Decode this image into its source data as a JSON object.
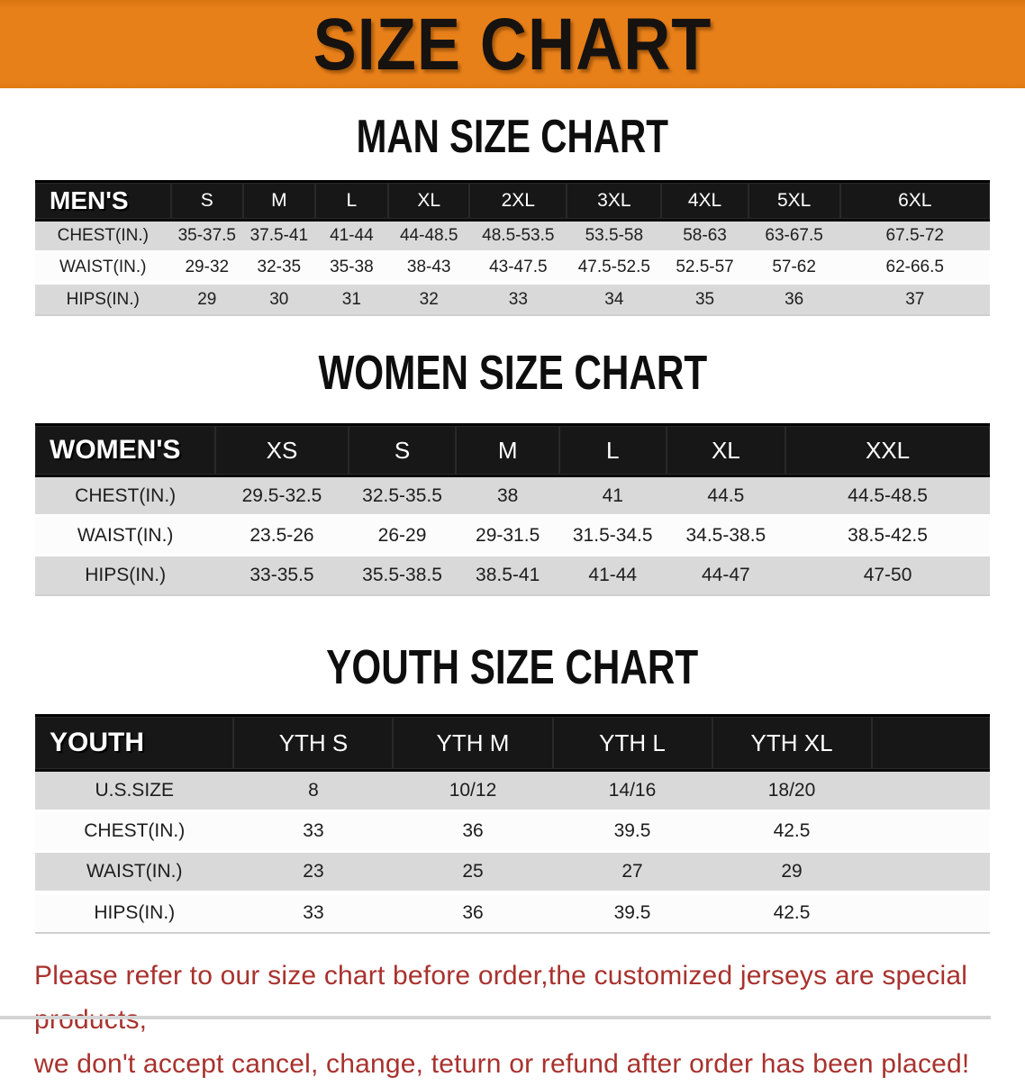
{
  "banner": {
    "title": "SIZE CHART"
  },
  "colors": {
    "banner_orange": "#E8801A",
    "header_black": "#171717",
    "row_gray": "#D9D9D9",
    "row_white": "#FCFCFC",
    "note_red": "#A8322E"
  },
  "sections": [
    {
      "heading": "MAN SIZE CHART",
      "group_label": "MEN'S",
      "columns": [
        "S",
        "M",
        "L",
        "XL",
        "2XL",
        "3XL",
        "4XL",
        "5XL",
        "6XL"
      ],
      "rows": [
        {
          "label": "CHEST(IN.)",
          "values": [
            "35-37.5",
            "37.5-41",
            "41-44",
            "44-48.5",
            "48.5-53.5",
            "53.5-58",
            "58-63",
            "63-67.5",
            "67.5-72"
          ]
        },
        {
          "label": "WAIST(IN.)",
          "values": [
            "29-32",
            "32-35",
            "35-38",
            "38-43",
            "43-47.5",
            "47.5-52.5",
            "52.5-57",
            "57-62",
            "62-66.5"
          ]
        },
        {
          "label": "HIPS(IN.)",
          "values": [
            "29",
            "30",
            "31",
            "32",
            "33",
            "34",
            "35",
            "36",
            "37"
          ]
        }
      ]
    },
    {
      "heading": "WOMEN SIZE CHART",
      "group_label": "WOMEN'S",
      "columns": [
        "XS",
        "S",
        "M",
        "L",
        "XL",
        "XXL"
      ],
      "rows": [
        {
          "label": "CHEST(IN.)",
          "values": [
            "29.5-32.5",
            "32.5-35.5",
            "38",
            "41",
            "44.5",
            "44.5-48.5"
          ]
        },
        {
          "label": "WAIST(IN.)",
          "values": [
            "23.5-26",
            "26-29",
            "29-31.5",
            "31.5-34.5",
            "34.5-38.5",
            "38.5-42.5"
          ]
        },
        {
          "label": "HIPS(IN.)",
          "values": [
            "33-35.5",
            "35.5-38.5",
            "38.5-41",
            "41-44",
            "44-47",
            "47-50"
          ]
        }
      ]
    },
    {
      "heading": "YOUTH SIZE CHART",
      "group_label": "YOUTH",
      "columns": [
        "YTH S",
        "YTH M",
        "YTH L",
        "YTH XL"
      ],
      "rows": [
        {
          "label": "U.S.SIZE",
          "values": [
            "8",
            "10/12",
            "14/16",
            "18/20"
          ]
        },
        {
          "label": "CHEST(IN.)",
          "values": [
            "33",
            "36",
            "39.5",
            "42.5"
          ]
        },
        {
          "label": "WAIST(IN.)",
          "values": [
            "23",
            "25",
            "27",
            "29"
          ]
        },
        {
          "label": "HIPS(IN.)",
          "values": [
            "33",
            "36",
            "39.5",
            "42.5"
          ]
        }
      ]
    }
  ],
  "footer": {
    "line1": "Please refer to our size chart before order,the customized jerseys are special products,",
    "line2": "we don't accept cancel, change, teturn or refund after order has been placed!"
  }
}
